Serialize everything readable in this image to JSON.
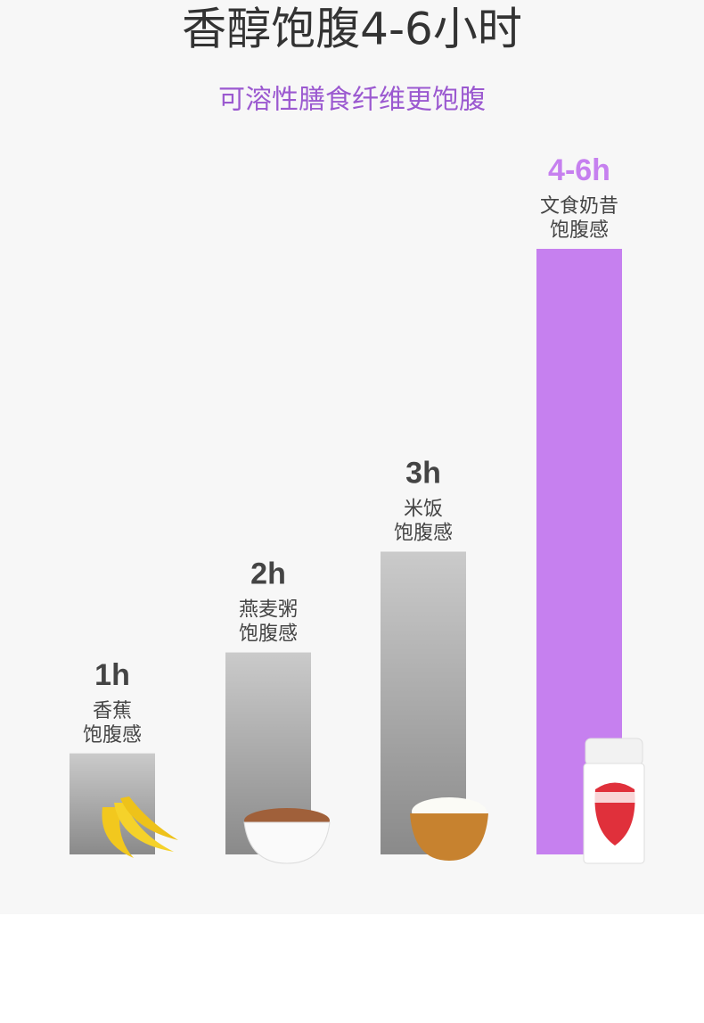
{
  "chart_data": {
    "type": "bar",
    "title": "香醇饱腹4-6小时",
    "subtitle": "可溶性膳食纤维更饱腹",
    "categories": [
      [
        "香蕉",
        "饱腹感"
      ],
      [
        "燕麦粥",
        "饱腹感"
      ],
      [
        "米饭",
        "饱腹感"
      ],
      [
        "文食奶昔",
        "饱腹感"
      ]
    ],
    "values": [
      1,
      2,
      3,
      6
    ],
    "value_labels": [
      "1h",
      "2h",
      "3h",
      "4-6h"
    ],
    "colors": [
      "#8a8a8a",
      "#8a8a8a",
      "#8a8a8a",
      "#c680ef"
    ],
    "label_colors": [
      "#444444",
      "#444444",
      "#444444",
      "#c680ef"
    ],
    "ylim": [
      0,
      6
    ]
  }
}
